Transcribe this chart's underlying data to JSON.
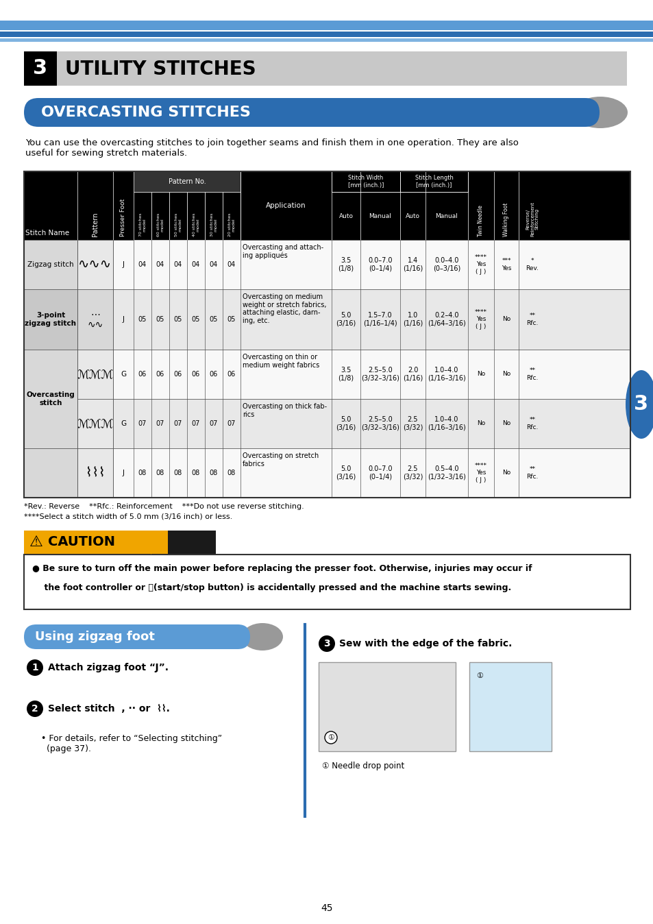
{
  "page_num": "45",
  "chapter_num": "3",
  "chapter_title": "UTILITY STITCHES",
  "section_title": "OVERCASTING STITCHES",
  "intro_text": "You can use the overcasting stitches to join together seams and finish them in one operation. They are also\nuseful for sewing stretch materials.",
  "table_headers": {
    "col1": "Stitch Name",
    "col2": "Pattern",
    "col3": "Presser Foot",
    "pattern_no": "Pattern No.",
    "sub_cols": [
      "70 stitches\nmodel",
      "60 stitches\nmodel",
      "50 stitches\nmodel",
      "40 stitches\nmodel",
      "30 stitches\nmodel",
      "20 stitches\nmodel"
    ],
    "application": "Application",
    "stitch_width": "Stitch Width\n[mm (inch.)]",
    "stitch_length": "Stitch Length\n[mm (inch.)]",
    "sw_auto": "Auto",
    "sw_manual": "Manual",
    "sl_auto": "Auto",
    "sl_manual": "Manual",
    "twin_needle": "Twin Needle",
    "walking_foot": "Walking Foot",
    "reverse": "Reverse/\nReinforcement\nStitching"
  },
  "table_rows": [
    {
      "name": "Zigzag stitch",
      "presser": "J",
      "pattern_no": [
        "04",
        "04",
        "04",
        "04",
        "04",
        "04"
      ],
      "application": "Overcasting and attach-\ning appliqués",
      "sw_auto": "3.5\n(1/8)",
      "sw_manual": "0.0–7.0\n(0–1/4)",
      "sl_auto": "1.4\n(1/16)",
      "sl_manual": "0.0–4.0\n(0–3/16)",
      "twin_needle": "****\nYes\n( J )",
      "walking_foot": "***\nYes",
      "reverse": "*\nRev.",
      "bg": "#ffffff"
    },
    {
      "name": "3-point\nzigzag stitch",
      "presser": "J",
      "pattern_no": [
        "05",
        "05",
        "05",
        "05",
        "05",
        "05"
      ],
      "application": "Overcasting on medium\nweight or stretch fabrics,\nattaching elastic, darn-\ning, etc.",
      "sw_auto": "5.0\n(3/16)",
      "sw_manual": "1.5–7.0\n(1/16–1/4)",
      "sl_auto": "1.0\n(1/16)",
      "sl_manual": "0.2–4.0\n(1/64–3/16)",
      "twin_needle": "****\nYes\n( J )",
      "walking_foot": "No",
      "reverse": "**\nRfc.",
      "bg": "#e8e8e8"
    },
    {
      "name": "",
      "presser": "G",
      "pattern_no": [
        "06",
        "06",
        "06",
        "06",
        "06",
        "06"
      ],
      "application": "Overcasting on thin or\nmedium weight fabrics",
      "sw_auto": "3.5\n(1/8)",
      "sw_manual": "2.5–5.0\n(3/32–3/16)",
      "sl_auto": "2.0\n(1/16)",
      "sl_manual": "1.0–4.0\n(1/16–3/16)",
      "twin_needle": "No",
      "walking_foot": "No",
      "reverse": "**\nRfc.",
      "bg": "#ffffff"
    },
    {
      "name": "Overcasting\nstitch",
      "presser": "G",
      "pattern_no": [
        "07",
        "07",
        "07",
        "07",
        "07",
        "07"
      ],
      "application": "Overcasting on thick fab-\nrics",
      "sw_auto": "5.0\n(3/16)",
      "sw_manual": "2.5–5.0\n(3/32–3/16)",
      "sl_auto": "2.5\n(3/32)",
      "sl_manual": "1.0–4.0\n(1/16–3/16)",
      "twin_needle": "No",
      "walking_foot": "No",
      "reverse": "**\nRfc.",
      "bg": "#e8e8e8"
    },
    {
      "name": "",
      "presser": "J",
      "pattern_no": [
        "08",
        "08",
        "08",
        "08",
        "08",
        "08"
      ],
      "application": "Overcasting on stretch\nfabrics",
      "sw_auto": "5.0\n(3/16)",
      "sw_manual": "0.0–7.0\n(0–1/4)",
      "sl_auto": "2.5\n(3/32)",
      "sl_manual": "0.5–4.0\n(1/32–3/16)",
      "twin_needle": "****\nYes\n( J )",
      "walking_foot": "No",
      "reverse": "**\nRfc.",
      "bg": "#ffffff"
    }
  ],
  "footnotes": [
    "*Rev.: Reverse    **Rfc.: Reinforcement    ***Do not use reverse stitching.",
    "****Select a stitch width of 5.0 mm (3/16 inch) or less."
  ],
  "caution_text": [
    "● Be sure to turn off the main power before replacing the presser foot. Otherwise, injuries may occur if",
    "    the foot controller or ⓘ(start/stop button) is accidentally pressed and the machine starts sewing."
  ],
  "using_title": "Using zigzag foot",
  "step1_text": "Attach zigzag foot “J”.",
  "step2_text": "Select stitch",
  "step2_extra": ", or",
  "step3_title": "Sew with the edge of the fabric.",
  "step3_sub": "① Needle drop point",
  "for_details_text": "• For details, refer to “Selecting stitching”\n  (page 37).",
  "colors": {
    "blue_dark": "#2b6cb0",
    "blue_header": "#3a7fc1",
    "blue_section": "#2563a8",
    "gray_header": "#cccccc",
    "black": "#000000",
    "white": "#ffffff",
    "light_gray": "#d9d9d9",
    "medium_gray": "#b0b0b0",
    "table_border": "#555555",
    "caution_yellow": "#f5a623",
    "caution_bg": "#1a1a1a",
    "row_gray": "#ebebeb"
  }
}
